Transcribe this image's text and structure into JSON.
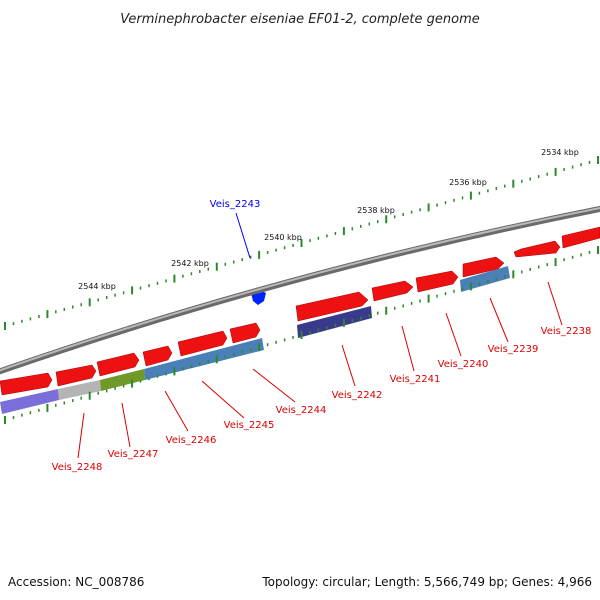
{
  "title": "Verminephrobacter eiseniae EF01-2, complete genome",
  "footer": {
    "accession": "Accession: NC_008786",
    "summary": "Topology: circular; Length: 5,566,749 bp; Genes: 4,966"
  },
  "scale_labels": [
    "2534 kbp",
    "2536 kbp",
    "2538 kbp",
    "2540 kbp",
    "2542 kbp",
    "2544 kbp"
  ],
  "colors": {
    "backbone": "#8c8c8c",
    "gene_red": "#ee1111",
    "protein_blue": "#4a7fb8",
    "protein_purple": "#7a6ed8",
    "protein_grey": "#b4b4b4",
    "protein_olive": "#6f9a2a",
    "protein_navy": "#3a3a8c",
    "tick_green": "#2a8a2a",
    "highlight": "#0000ee",
    "label_red": "#dd0000"
  },
  "genes": [
    {
      "id": "Veis_2238",
      "color": "red"
    },
    {
      "id": "Veis_2239",
      "color": "red"
    },
    {
      "id": "Veis_2240",
      "color": "red"
    },
    {
      "id": "Veis_2241",
      "color": "red"
    },
    {
      "id": "Veis_2242",
      "color": "red"
    },
    {
      "id": "Veis_2243",
      "color": "blue"
    },
    {
      "id": "Veis_2244",
      "color": "red"
    },
    {
      "id": "Veis_2245",
      "color": "red"
    },
    {
      "id": "Veis_2246",
      "color": "red"
    },
    {
      "id": "Veis_2247",
      "color": "red"
    },
    {
      "id": "Veis_2248",
      "color": "red"
    }
  ]
}
